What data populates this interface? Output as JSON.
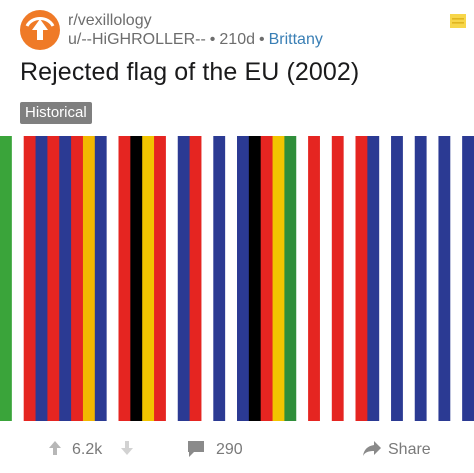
{
  "post": {
    "subreddit": "r/vexillology",
    "author": "u/--HiGHROLLER--",
    "age": "210d",
    "flair": "Brittany",
    "title": "Rejected flag of the EU (2002)",
    "tag": "Historical",
    "upvotes": "6.2k",
    "comments": "290",
    "share_label": "Share"
  },
  "colors": {
    "avatar": "#ef7a27",
    "tag_bg": "#7f7f7f",
    "flair": "#3a7fb5",
    "save_icon": "#f7d64a"
  },
  "icons": {
    "avatar": "subreddit-avatar-icon",
    "save": "bookmark-icon",
    "upvote": "upvote-arrow-icon",
    "downvote": "downvote-arrow-icon",
    "comments": "comment-bubble-icon",
    "share": "share-arrow-icon"
  },
  "flag_stripes": [
    "#3aa43a",
    "#ffffff",
    "#e52521",
    "#2b3a93",
    "#e52521",
    "#2b3a93",
    "#e52521",
    "#f2b800",
    "#2b3a93",
    "#ffffff",
    "#e52521",
    "#000000",
    "#f2c500",
    "#e52521",
    "#ffffff",
    "#2b3a93",
    "#e52521",
    "#ffffff",
    "#2b3a93",
    "#ffffff",
    "#2b3a93",
    "#000000",
    "#e52521",
    "#f2c500",
    "#2f8e3a",
    "#ffffff",
    "#e52521",
    "#ffffff",
    "#e52521",
    "#ffffff",
    "#e52521",
    "#2b3a93",
    "#ffffff",
    "#2b3a93",
    "#ffffff",
    "#2b3a93",
    "#ffffff",
    "#2b3a93",
    "#ffffff",
    "#2b3a93"
  ]
}
